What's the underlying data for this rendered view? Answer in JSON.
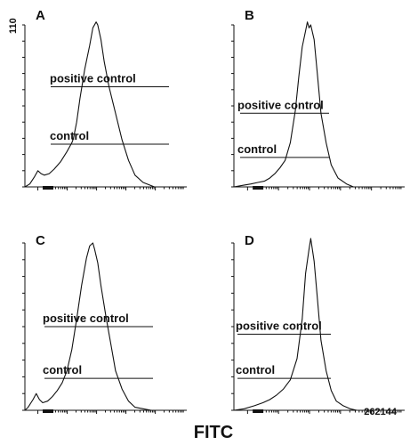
{
  "figure": {
    "x_axis_title": "FITC",
    "y_axis_max_label": "110",
    "x_axis_max_label": "262144"
  },
  "chart_data": [
    {
      "type": "line",
      "panel": "A",
      "ylim": [
        0,
        110
      ],
      "x_scale": "log",
      "annotations": [
        {
          "label": "positive control",
          "y": 68
        },
        {
          "label": "control",
          "y": 29
        }
      ],
      "x": [
        0.0,
        0.03,
        0.06,
        0.08,
        0.1,
        0.12,
        0.15,
        0.18,
        0.22,
        0.26,
        0.29,
        0.3,
        0.32,
        0.34,
        0.37,
        0.4,
        0.42,
        0.44,
        0.45,
        0.47,
        0.49,
        0.52,
        0.56,
        0.6,
        0.64,
        0.68,
        0.73,
        0.8
      ],
      "y": [
        0,
        2,
        7,
        11,
        9,
        8,
        9,
        12,
        17,
        24,
        30,
        33,
        44,
        60,
        80,
        96,
        108,
        112,
        110,
        100,
        85,
        68,
        50,
        32,
        18,
        8,
        3,
        0
      ]
    },
    {
      "type": "line",
      "panel": "B",
      "ylim": [
        0,
        110
      ],
      "x_scale": "log",
      "annotations": [
        {
          "label": "positive control",
          "y": 50
        },
        {
          "label": "control",
          "y": 20
        }
      ],
      "x": [
        0.0,
        0.05,
        0.1,
        0.14,
        0.18,
        0.21,
        0.24,
        0.27,
        0.3,
        0.33,
        0.36,
        0.38,
        0.4,
        0.42,
        0.43,
        0.44,
        0.45,
        0.47,
        0.49,
        0.51,
        0.54,
        0.57,
        0.61,
        0.66,
        0.7
      ],
      "y": [
        0,
        1,
        2,
        3,
        4,
        6,
        9,
        13,
        18,
        30,
        52,
        75,
        95,
        106,
        112,
        108,
        110,
        100,
        75,
        50,
        30,
        15,
        6,
        2,
        0
      ]
    },
    {
      "type": "line",
      "panel": "C",
      "ylim": [
        0,
        110
      ],
      "x_scale": "log",
      "annotations": [
        {
          "label": "positive control",
          "y": 55
        },
        {
          "label": "control",
          "y": 21
        }
      ],
      "x": [
        0.0,
        0.02,
        0.05,
        0.07,
        0.09,
        0.11,
        0.14,
        0.17,
        0.2,
        0.23,
        0.26,
        0.29,
        0.32,
        0.35,
        0.38,
        0.4,
        0.42,
        0.43,
        0.45,
        0.47,
        0.5,
        0.53,
        0.56,
        0.6,
        0.64,
        0.68,
        0.73,
        0.78
      ],
      "y": [
        0,
        2,
        7,
        11,
        7,
        5,
        6,
        9,
        13,
        18,
        26,
        40,
        60,
        82,
        100,
        108,
        110,
        106,
        97,
        82,
        62,
        44,
        26,
        14,
        6,
        2,
        1,
        0
      ]
    },
    {
      "type": "line",
      "panel": "D",
      "ylim": [
        0,
        110
      ],
      "x_scale": "log",
      "annotations": [
        {
          "label": "positive control",
          "y": 50
        },
        {
          "label": "control",
          "y": 21
        }
      ],
      "x": [
        0.0,
        0.06,
        0.12,
        0.17,
        0.21,
        0.25,
        0.29,
        0.33,
        0.37,
        0.4,
        0.42,
        0.44,
        0.45,
        0.47,
        0.49,
        0.51,
        0.54,
        0.57,
        0.6,
        0.64,
        0.68,
        0.72
      ],
      "y": [
        0,
        1,
        3,
        5,
        7,
        10,
        14,
        20,
        34,
        60,
        90,
        106,
        113,
        98,
        72,
        46,
        26,
        13,
        6,
        3,
        1,
        0
      ]
    }
  ]
}
